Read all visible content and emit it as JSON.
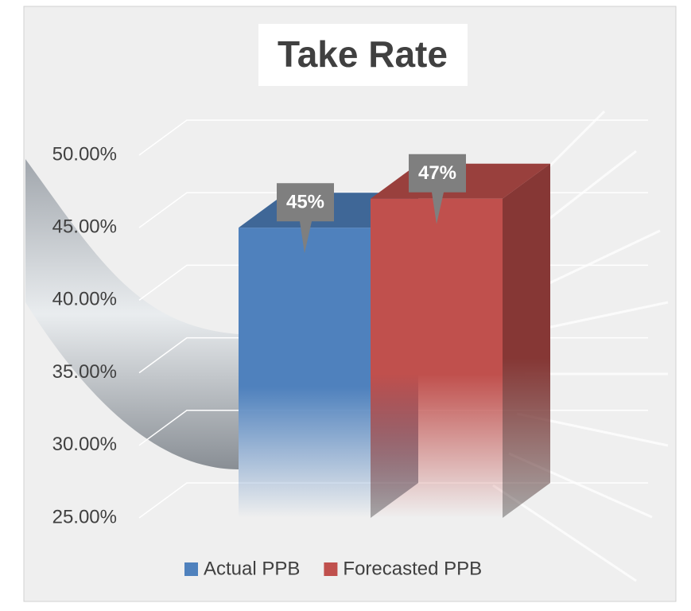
{
  "chart_data": {
    "type": "bar3d",
    "title": "Take Rate",
    "series": [
      {
        "name": "Actual PPB",
        "color": "#4f81bd",
        "values": [
          45
        ],
        "value_labels": [
          "45%"
        ]
      },
      {
        "name": "Forecasted PPB",
        "color": "#c0504d",
        "values": [
          47
        ],
        "value_labels": [
          "47%"
        ]
      }
    ],
    "ylim": [
      25,
      50
    ],
    "yticks": [
      {
        "value": 25,
        "label": "25.00%"
      },
      {
        "value": 30,
        "label": "30.00%"
      },
      {
        "value": 35,
        "label": "35.00%"
      },
      {
        "value": 40,
        "label": "40.00%"
      },
      {
        "value": 45,
        "label": "45.00%"
      },
      {
        "value": 50,
        "label": "50.00%"
      }
    ],
    "grid": true,
    "legend": "bottom"
  }
}
